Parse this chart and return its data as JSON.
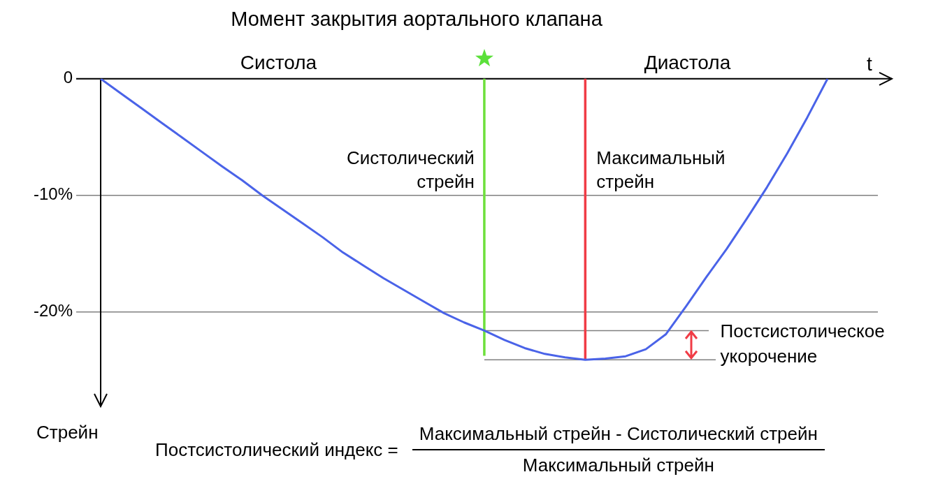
{
  "chart_data": {
    "type": "line",
    "title": "Момент закрытия аортального клапана",
    "xlabel": "t",
    "ylabel": "Стрейн",
    "categories": [
      null,
      null,
      null,
      null,
      null,
      null,
      null,
      null,
      null,
      null,
      null,
      null,
      null,
      null,
      null,
      null,
      null,
      null,
      null,
      null,
      null,
      null,
      null,
      null,
      null,
      null,
      null,
      null,
      null,
      null,
      null,
      null,
      null,
      null,
      null,
      null,
      null
    ],
    "series": [
      {
        "color": "#4a63e8",
        "values": [
          0,
          -1.25,
          -2.5,
          -3.75,
          -5.0,
          -6.25,
          -7.5,
          -8.7,
          -10.0,
          -11.2,
          -12.4,
          -13.6,
          -14.9,
          -16.0,
          -17.1,
          -18.1,
          -19.1,
          -20.1,
          -20.9,
          -21.6,
          -22.4,
          -23.1,
          -23.6,
          -23.9,
          -24.1,
          -24.0,
          -23.8,
          -23.2,
          -21.9,
          -19.5,
          -17.0,
          -14.6,
          -12.0,
          -9.3,
          -6.4,
          -3.3,
          0
        ]
      }
    ],
    "ylim": [
      -27,
      0
    ],
    "yticks": [
      0,
      {
        "value": -10,
        "label": "-10%"
      },
      {
        "value": -20,
        "label": "-20%"
      }
    ],
    "grid": "y",
    "legend": false,
    "marker": "none",
    "line_style": "solid",
    "ref_lines": [
      {
        "axis": "y",
        "value": -21.6,
        "color": "#808080"
      },
      {
        "axis": "y",
        "value": -24.1,
        "color": "#808080"
      }
    ],
    "annotations": [
      "Систола",
      "Диастола",
      "Систолический стрейн",
      "Максимальный стрейн",
      "Постсистолическое укорочение",
      "Постсистолический индекс =",
      "Максимальный стрейн - Систолический стрейн",
      "Максимальный стрейн"
    ]
  }
}
